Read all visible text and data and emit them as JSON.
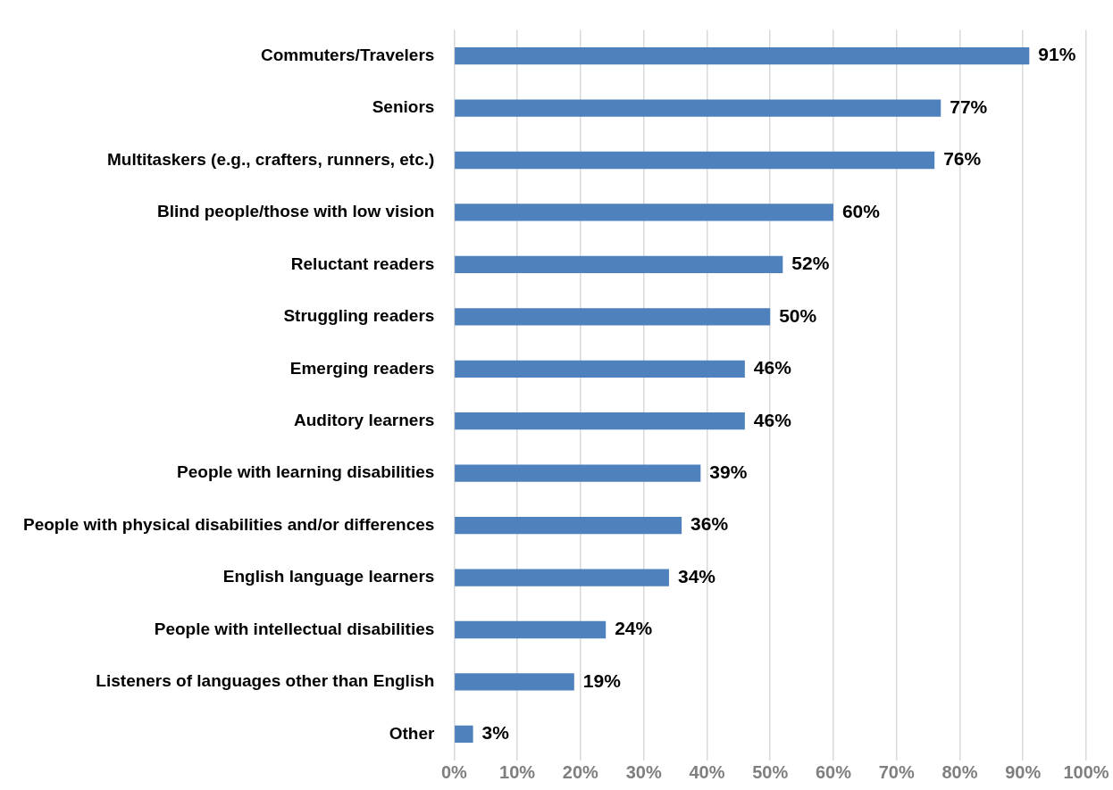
{
  "chart_data": {
    "type": "bar",
    "orientation": "horizontal",
    "categories": [
      "Commuters/Travelers",
      "Seniors",
      "Multitaskers (e.g., crafters, runners, etc.)",
      "Blind people/those with low vision",
      "Reluctant readers",
      "Struggling readers",
      "Emerging readers",
      "Auditory learners",
      "People with learning disabilities",
      "People with physical disabilities and/or differences",
      "English language learners",
      "People with intellectual disabilities",
      "Listeners of languages other than English",
      "Other"
    ],
    "values": [
      91,
      77,
      76,
      60,
      52,
      50,
      46,
      46,
      39,
      36,
      34,
      24,
      19,
      3
    ],
    "value_labels": [
      "91%",
      "77%",
      "76%",
      "60%",
      "52%",
      "50%",
      "46%",
      "46%",
      "39%",
      "36%",
      "34%",
      "24%",
      "19%",
      "3%"
    ],
    "color": "#4f81bd",
    "xlim": [
      0,
      100
    ],
    "xticks": [
      {
        "value": 0,
        "label": "0%"
      },
      {
        "value": 10,
        "label": "10%"
      },
      {
        "value": 20,
        "label": "20%"
      },
      {
        "value": 30,
        "label": "30%"
      },
      {
        "value": 40,
        "label": "40%"
      },
      {
        "value": 50,
        "label": "50%"
      },
      {
        "value": 60,
        "label": "60%"
      },
      {
        "value": 70,
        "label": "70%"
      },
      {
        "value": 80,
        "label": "80%"
      },
      {
        "value": 90,
        "label": "90%"
      },
      {
        "value": 100,
        "label": "100%"
      }
    ],
    "grid": "x"
  }
}
